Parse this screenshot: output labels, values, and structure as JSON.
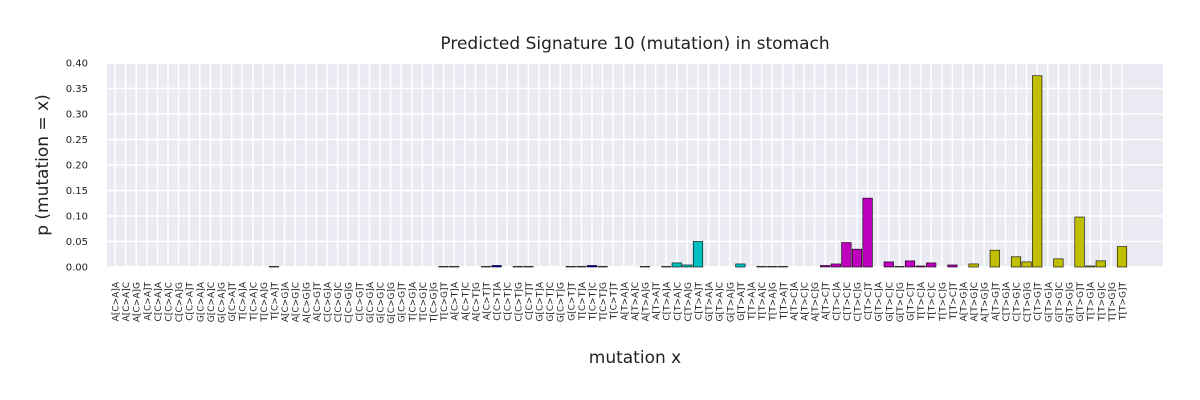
{
  "chart_data": {
    "type": "bar",
    "title": "Predicted Signature 10 (mutation) in stomach",
    "xlabel": "mutation x",
    "ylabel": "p (mutation = x)",
    "categories": [
      "A[C>A]A",
      "A[C>A]C",
      "A[C>A]G",
      "A[C>A]T",
      "C[C>A]A",
      "C[C>A]C",
      "C[C>A]G",
      "C[C>A]T",
      "G[C>A]A",
      "G[C>A]C",
      "G[C>A]G",
      "G[C>A]T",
      "T[C>A]A",
      "T[C>A]C",
      "T[C>A]G",
      "T[C>A]T",
      "A[C>G]A",
      "A[C>G]C",
      "A[C>G]G",
      "A[C>G]T",
      "C[C>G]A",
      "C[C>G]C",
      "C[C>G]G",
      "C[C>G]T",
      "G[C>G]A",
      "G[C>G]C",
      "G[C>G]G",
      "G[C>G]T",
      "T[C>G]A",
      "T[C>G]C",
      "T[C>G]G",
      "T[C>G]T",
      "A[C>T]A",
      "A[C>T]C",
      "A[C>T]G",
      "A[C>T]T",
      "C[C>T]A",
      "C[C>T]C",
      "C[C>T]G",
      "C[C>T]T",
      "G[C>T]A",
      "G[C>T]C",
      "G[C>T]G",
      "G[C>T]T",
      "T[C>T]A",
      "T[C>T]C",
      "T[C>T]G",
      "T[C>T]T",
      "A[T>A]A",
      "A[T>A]C",
      "A[T>A]G",
      "A[T>A]T",
      "C[T>A]A",
      "C[T>A]C",
      "C[T>A]G",
      "C[T>A]T",
      "G[T>A]A",
      "G[T>A]C",
      "G[T>A]G",
      "G[T>A]T",
      "T[T>A]A",
      "T[T>A]C",
      "T[T>A]G",
      "T[T>A]T",
      "A[T>C]A",
      "A[T>C]C",
      "A[T>C]G",
      "A[T>C]T",
      "C[T>C]A",
      "C[T>C]C",
      "C[T>C]G",
      "C[T>C]T",
      "G[T>C]A",
      "G[T>C]C",
      "G[T>C]G",
      "G[T>C]T",
      "T[T>C]A",
      "T[T>C]C",
      "T[T>C]G",
      "T[T>C]T",
      "A[T>G]A",
      "A[T>G]C",
      "A[T>G]G",
      "A[T>G]T",
      "C[T>G]A",
      "C[T>G]C",
      "C[T>G]G",
      "C[T>G]T",
      "G[T>G]A",
      "G[T>G]C",
      "G[T>G]G",
      "G[T>G]T",
      "T[T>G]A",
      "T[T>G]C",
      "T[T>G]G",
      "T[T>G]T"
    ],
    "values": [
      0,
      0,
      0,
      0,
      0,
      0,
      0,
      0,
      0,
      0,
      0,
      0,
      0,
      0,
      0,
      0.001,
      0,
      0,
      0,
      0,
      0,
      0,
      0,
      0,
      0,
      0,
      0,
      0,
      0,
      0,
      0,
      0.001,
      0.001,
      0,
      0,
      0.001,
      0.003,
      0,
      0.001,
      0.001,
      0,
      0,
      0,
      0.001,
      0.001,
      0.003,
      0.001,
      0,
      0,
      0,
      0.001,
      0,
      0.001,
      0.008,
      0.004,
      0.05,
      0,
      0,
      0,
      0.006,
      0,
      0.001,
      0.001,
      0.001,
      0,
      0,
      0,
      0.003,
      0.006,
      0.048,
      0.035,
      0.135,
      0,
      0.01,
      0.001,
      0.012,
      0.002,
      0.008,
      0,
      0.004,
      0,
      0.006,
      0,
      0.033,
      0,
      0.02,
      0.01,
      0.375,
      0,
      0.016,
      0,
      0.098,
      0.002,
      0.012,
      0,
      0.04
    ],
    "colors": [
      "#000080",
      "#000080",
      "#000080",
      "#000080",
      "#000080",
      "#000080",
      "#000080",
      "#000080",
      "#000080",
      "#000080",
      "#000080",
      "#000080",
      "#000080",
      "#000080",
      "#000080",
      "#000080",
      "#000000",
      "#000000",
      "#000000",
      "#000000",
      "#000000",
      "#000000",
      "#000000",
      "#000000",
      "#000000",
      "#000000",
      "#000000",
      "#000000",
      "#000000",
      "#000000",
      "#000000",
      "#000000",
      "#0000cc",
      "#0000cc",
      "#0000cc",
      "#0000cc",
      "#0000cc",
      "#0000cc",
      "#0000cc",
      "#0000cc",
      "#0000cc",
      "#0000cc",
      "#0000cc",
      "#0000cc",
      "#0000cc",
      "#0000cc",
      "#0000cc",
      "#0000cc",
      "#00bfbf",
      "#00bfbf",
      "#00bfbf",
      "#00bfbf",
      "#00bfbf",
      "#00bfbf",
      "#00bfbf",
      "#00bfbf",
      "#00bfbf",
      "#00bfbf",
      "#00bfbf",
      "#00bfbf",
      "#00bfbf",
      "#00bfbf",
      "#00bfbf",
      "#00bfbf",
      "#bf00bf",
      "#bf00bf",
      "#bf00bf",
      "#bf00bf",
      "#bf00bf",
      "#bf00bf",
      "#bf00bf",
      "#bf00bf",
      "#bf00bf",
      "#bf00bf",
      "#bf00bf",
      "#bf00bf",
      "#bf00bf",
      "#bf00bf",
      "#bf00bf",
      "#bf00bf",
      "#bfbf00",
      "#bfbf00",
      "#bfbf00",
      "#bfbf00",
      "#bfbf00",
      "#bfbf00",
      "#bfbf00",
      "#bfbf00",
      "#bfbf00",
      "#bfbf00",
      "#bfbf00",
      "#bfbf00",
      "#bfbf00",
      "#bfbf00",
      "#bfbf00",
      "#bfbf00"
    ],
    "ylim": [
      0,
      0.4
    ],
    "yticks": [
      {
        "value": 0,
        "label": "0.00"
      },
      0.05,
      {
        "value": 0.1,
        "label": "0.10"
      },
      0.15,
      {
        "value": 0.2,
        "label": "0.20"
      },
      0.25,
      {
        "value": 0.3,
        "label": "0.30"
      },
      0.35,
      {
        "value": 0.4,
        "label": "0.40"
      }
    ],
    "grid": true
  }
}
